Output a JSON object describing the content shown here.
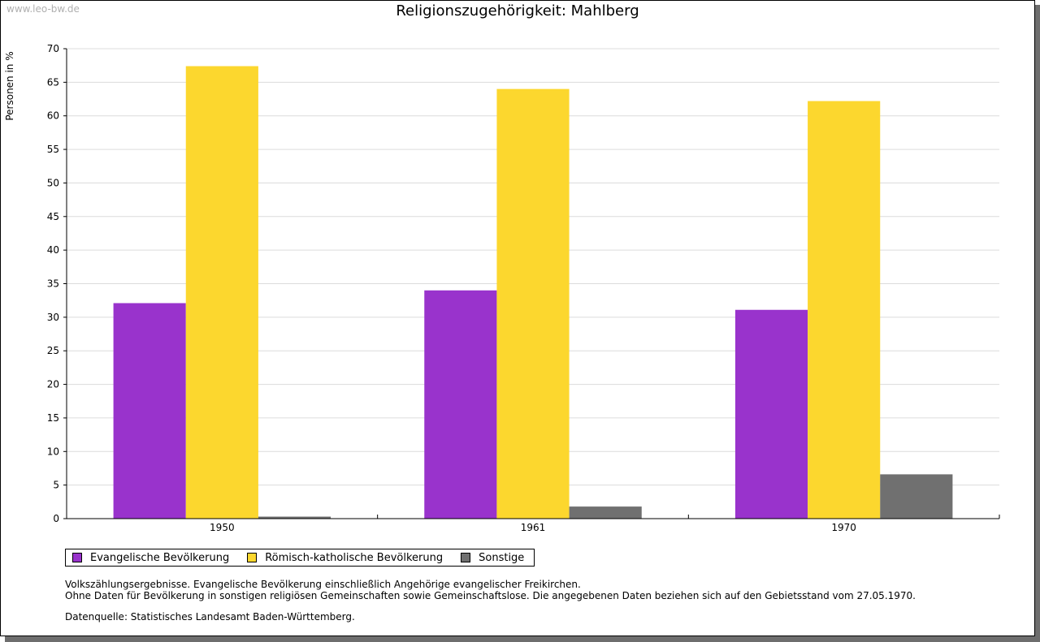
{
  "watermark": "www.leo-bw.de",
  "chart_data": {
    "type": "bar",
    "title": "Religionszugehörigkeit: Mahlberg",
    "xlabel": "",
    "ylabel": "Personen in %",
    "ylim": [
      0,
      70
    ],
    "ytick_step": 5,
    "categories": [
      "1950",
      "1961",
      "1970"
    ],
    "series": [
      {
        "name": "Evangelische Bevölkerung",
        "color": "#9933cc",
        "values": [
          32.1,
          34.0,
          31.1
        ]
      },
      {
        "name": "Römisch-katholische Bevölkerung",
        "color": "#fcd72e",
        "values": [
          67.4,
          64.0,
          62.2
        ]
      },
      {
        "name": "Sonstige",
        "color": "#707070",
        "values": [
          0.3,
          1.8,
          6.6
        ]
      }
    ],
    "grid": true,
    "legend": "bottom-left"
  },
  "notes": {
    "line1": "Volkszählungsergebnisse. Evangelische Bevölkerung einschließlich Angehörige evangelischer Freikirchen.",
    "line2": "Ohne Daten für Bevölkerung in sonstigen religiösen Gemeinschaften sowie Gemeinschaftslose. Die angegebenen Daten beziehen sich auf den Gebietsstand vom 27.05.1970.",
    "source": "Datenquelle: Statistisches Landesamt Baden-Württemberg."
  }
}
